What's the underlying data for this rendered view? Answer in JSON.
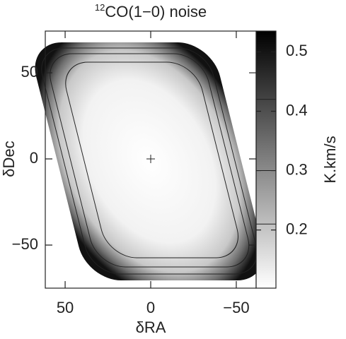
{
  "chart_data": {
    "type": "image",
    "title_sup": "12",
    "title": "CO(1−0) noise",
    "x_label": "δRA",
    "y_label": "δDec",
    "xlim": [
      61.6,
      -61.6
    ],
    "ylim": [
      -75,
      74.2
    ],
    "xticks": [
      50,
      0,
      {
        "value": -50,
        "label": "−50"
      }
    ],
    "yticks": [
      {
        "value": -50,
        "label": "−50"
      },
      0,
      50
    ],
    "marker": {
      "x": 0,
      "y": 0
    },
    "contour_levels": [
      0.21,
      0.3,
      0.42
    ],
    "colormap": [
      "#ffffff",
      "#000000"
    ],
    "colorbar": {
      "label": "K.km/s",
      "clim": [
        0.102,
        0.535
      ],
      "ticks": [
        0.2,
        0.3,
        0.4,
        0.5
      ]
    }
  }
}
